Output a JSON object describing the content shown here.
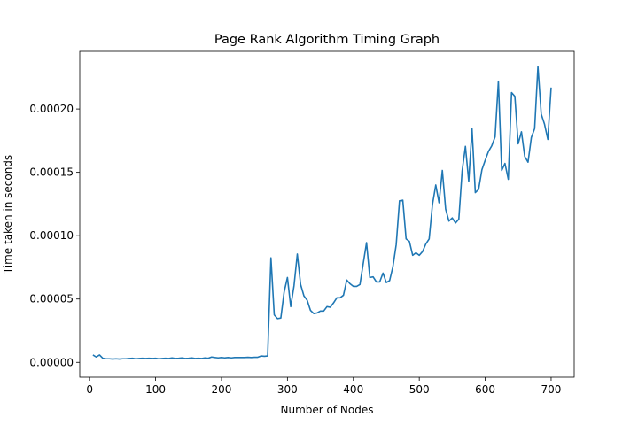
{
  "chart_data": {
    "type": "line",
    "title": "Page Rank Algorithm Timing Graph",
    "xlabel": "Number of Nodes",
    "ylabel": "Time taken in seconds",
    "xlim": [
      -15,
      735
    ],
    "ylim": [
      -1.17e-05,
      0.0002455
    ],
    "grid": false,
    "legend": "none",
    "x_ticks": [
      0,
      100,
      200,
      300,
      400,
      500,
      600,
      700
    ],
    "x_tick_labels": [
      "0",
      "100",
      "200",
      "300",
      "400",
      "500",
      "600",
      "700"
    ],
    "y_ticks": [
      0,
      5e-05,
      0.0001,
      0.00015,
      0.0002
    ],
    "y_tick_labels": [
      "0.00000",
      "0.00005",
      "0.00010",
      "0.00015",
      "0.00020"
    ],
    "series": [
      {
        "color": "#1f77b4",
        "x": [
          5,
          10,
          15,
          20,
          25,
          30,
          35,
          40,
          45,
          50,
          55,
          60,
          65,
          70,
          75,
          80,
          85,
          90,
          95,
          100,
          105,
          110,
          115,
          120,
          125,
          130,
          135,
          140,
          145,
          150,
          155,
          160,
          165,
          170,
          175,
          180,
          185,
          190,
          195,
          200,
          205,
          210,
          215,
          220,
          225,
          230,
          235,
          240,
          245,
          250,
          255,
          260,
          265,
          270,
          275,
          280,
          285,
          290,
          295,
          300,
          305,
          310,
          315,
          320,
          325,
          330,
          335,
          340,
          345,
          350,
          355,
          360,
          365,
          370,
          375,
          380,
          385,
          390,
          395,
          400,
          405,
          410,
          415,
          420,
          425,
          430,
          435,
          440,
          445,
          450,
          455,
          460,
          465,
          470,
          475,
          480,
          485,
          490,
          495,
          500,
          505,
          510,
          515,
          520,
          525,
          530,
          535,
          540,
          545,
          550,
          555,
          560,
          565,
          570,
          575,
          580,
          585,
          590,
          595,
          600,
          605,
          610,
          615,
          620,
          625,
          630,
          635,
          640,
          645,
          650,
          655,
          660,
          665,
          670,
          675,
          680,
          685,
          690,
          695,
          700
        ],
        "y": [
          5.8e-06,
          4.2e-06,
          5.8e-06,
          3.2e-06,
          2.8e-06,
          2.8e-06,
          2.6e-06,
          2.8e-06,
          2.6e-06,
          2.8e-06,
          2.8e-06,
          3e-06,
          3.2e-06,
          2.8e-06,
          3e-06,
          3.2e-06,
          3e-06,
          3.2e-06,
          3e-06,
          3.2e-06,
          2.8e-06,
          3e-06,
          3.2e-06,
          3e-06,
          3.5e-06,
          3e-06,
          3.2e-06,
          3.5e-06,
          3e-06,
          3.2e-06,
          3.5e-06,
          3e-06,
          3.2e-06,
          3e-06,
          3.5e-06,
          3.2e-06,
          4.2e-06,
          3.8e-06,
          3.5e-06,
          3.8e-06,
          3.5e-06,
          3.8e-06,
          3.5e-06,
          3.8e-06,
          3.8e-06,
          3.8e-06,
          3.8e-06,
          4e-06,
          3.8e-06,
          4e-06,
          4e-06,
          5e-06,
          4.8e-06,
          5e-06,
          8.25e-05,
          3.75e-05,
          3.45e-05,
          3.5e-05,
          5.55e-05,
          6.7e-05,
          4.4e-05,
          6.05e-05,
          8.55e-05,
          6.15e-05,
          5.25e-05,
          4.9e-05,
          4.1e-05,
          3.85e-05,
          3.9e-05,
          4.05e-05,
          4.05e-05,
          4.4e-05,
          4.35e-05,
          4.7e-05,
          5.1e-05,
          5.1e-05,
          5.3e-05,
          6.5e-05,
          6.2e-05,
          6e-05,
          6e-05,
          6.15e-05,
          7.8e-05,
          9.45e-05,
          6.7e-05,
          6.75e-05,
          6.35e-05,
          6.35e-05,
          7.05e-05,
          6.3e-05,
          6.45e-05,
          7.55e-05,
          9.3e-05,
          0.0001275,
          0.000128,
          9.75e-05,
          9.55e-05,
          8.45e-05,
          8.65e-05,
          8.45e-05,
          8.75e-05,
          9.35e-05,
          9.75e-05,
          0.0001245,
          0.00014,
          0.000126,
          0.0001515,
          0.000121,
          0.0001115,
          0.000114,
          0.00011,
          0.000113,
          0.000151,
          0.0001705,
          0.000143,
          0.0001845,
          0.000134,
          0.0001365,
          0.000152,
          0.0001595,
          0.0001665,
          0.000171,
          0.000178,
          0.000222,
          0.0001515,
          0.000157,
          0.0001445,
          0.000213,
          0.00021,
          0.0001725,
          0.000182,
          0.0001625,
          0.000158,
          0.0001775,
          0.0001845,
          0.0002335,
          0.000196,
          0.000188,
          0.000176,
          0.000217
        ]
      }
    ]
  }
}
